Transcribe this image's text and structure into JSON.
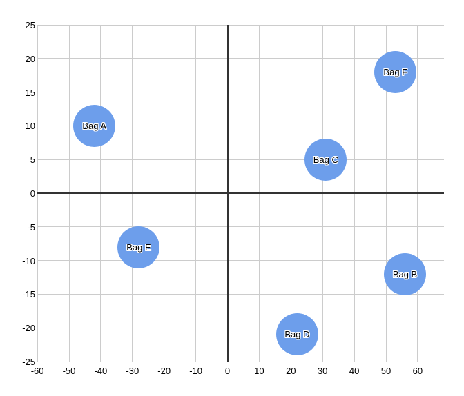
{
  "chart_data": {
    "type": "scatter",
    "subtype": "bubble",
    "title": "",
    "xlabel": "",
    "ylabel": "",
    "grid": true,
    "xlim": [
      -60,
      68.3
    ],
    "ylim": [
      -25,
      25
    ],
    "x_ticks": [
      -60,
      -50,
      -40,
      -30,
      -20,
      -10,
      0,
      10,
      20,
      30,
      40,
      50,
      60
    ],
    "y_ticks": [
      25,
      20,
      15,
      10,
      5,
      0,
      -5,
      -10,
      -15,
      -20,
      -25
    ],
    "points": [
      {
        "label": "Bag A",
        "x": -42,
        "y": 10
      },
      {
        "label": "Bag B",
        "x": 56,
        "y": -12
      },
      {
        "label": "Bag C",
        "x": 31,
        "y": 5
      },
      {
        "label": "Bag D",
        "x": 22,
        "y": -21
      },
      {
        "label": "Bag E",
        "x": -28,
        "y": -8
      },
      {
        "label": "Bag F",
        "x": 53,
        "y": 18
      }
    ],
    "bubble_size_equal": true,
    "colors": {
      "bubble": "#6d9eeb",
      "bubble_label": "#000000",
      "bubble_label_outline": "#ffffff",
      "gridline": "#cccccc",
      "baseline": "#333333",
      "tick_label": "#000000",
      "background": "#ffffff"
    }
  }
}
